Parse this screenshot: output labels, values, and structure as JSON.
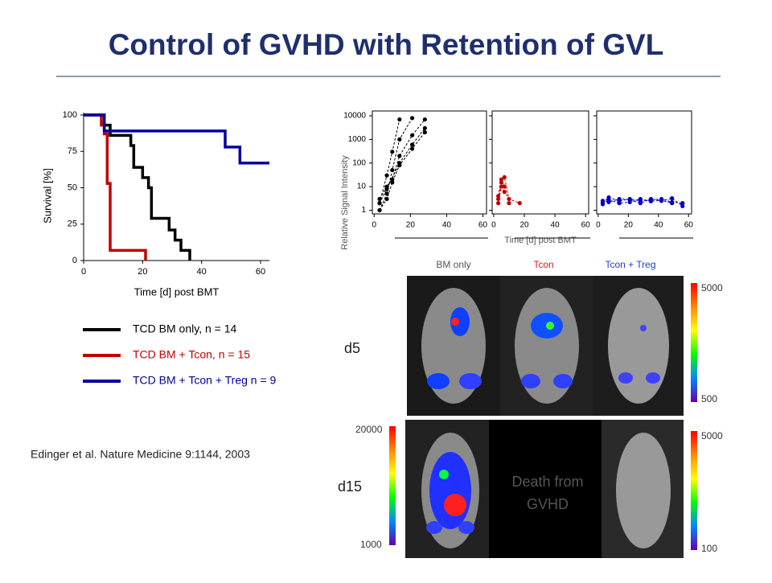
{
  "title": "Control of GVHD with Retention of GVL",
  "citation": "Edinger et al. Nature Medicine 9:1144, 2003",
  "chart_data": [
    {
      "type": "step",
      "xlabel": "Time [d] post BMT",
      "ylabel": "Survival [%]",
      "xlim": [
        0,
        63
      ],
      "xticks": [
        0,
        20,
        40,
        60
      ],
      "ylim": [
        0,
        100
      ],
      "yticks": [
        0,
        25,
        50,
        75,
        100
      ],
      "series": [
        {
          "name": "TCD BM only, n = 14",
          "color": "#000000",
          "x": [
            0,
            7,
            9,
            16,
            17,
            20,
            22,
            23,
            29,
            31,
            33,
            36
          ],
          "values": [
            100,
            93,
            86,
            79,
            64,
            57,
            50,
            29,
            21,
            14,
            7,
            0
          ]
        },
        {
          "name": "TCD BM + Tcon, n = 15",
          "color": "#c00000",
          "x": [
            0,
            6,
            7,
            8,
            9,
            21
          ],
          "values": [
            100,
            93,
            87,
            53,
            7,
            0
          ]
        },
        {
          "name": "TCD BM + Tcon + Treg n = 9",
          "color": "#0000a0",
          "x": [
            0,
            7,
            48,
            53,
            63
          ],
          "values": [
            100,
            89,
            78,
            67,
            67
          ]
        }
      ]
    },
    {
      "type": "line",
      "log": true,
      "ylabel": "Relative Signal Intensity",
      "xlim": [
        -1,
        62
      ],
      "xticks": [
        0,
        20,
        40,
        60
      ],
      "ylim": [
        0.7,
        16000
      ],
      "yticks": [
        1,
        10,
        100,
        1000,
        10000
      ],
      "series": [
        {
          "color": "#000000",
          "x": [
            3,
            7,
            10,
            14
          ],
          "values": [
            2,
            30,
            300,
            7000
          ]
        },
        {
          "color": "#000000",
          "x": [
            3,
            7,
            10,
            14,
            21
          ],
          "values": [
            1,
            5,
            50,
            1000,
            8000
          ]
        },
        {
          "color": "#000000",
          "x": [
            3,
            7,
            10,
            14,
            21,
            28
          ],
          "values": [
            3,
            10,
            20,
            200,
            1500,
            7000
          ]
        },
        {
          "color": "#000000",
          "x": [
            3,
            7,
            14,
            21,
            28
          ],
          "values": [
            2,
            8,
            100,
            600,
            3000
          ]
        },
        {
          "color": "#000000",
          "x": [
            3,
            7,
            10,
            14,
            21,
            28
          ],
          "values": [
            1,
            3,
            15,
            80,
            400,
            2000
          ]
        }
      ]
    },
    {
      "type": "line",
      "log": true,
      "xlabel": "Time [d] post BMT",
      "xlim": [
        -1,
        62
      ],
      "xticks": [
        0,
        20,
        40,
        60
      ],
      "ylim": [
        0.7,
        16000
      ],
      "yticks": [
        1,
        10,
        100,
        1000,
        10000
      ],
      "series": [
        {
          "color": "#c00000",
          "x": [
            3,
            5,
            7,
            10,
            17
          ],
          "values": [
            3,
            15,
            25,
            3,
            2
          ]
        },
        {
          "color": "#c00000",
          "x": [
            3,
            5,
            7
          ],
          "values": [
            2,
            10,
            6
          ]
        },
        {
          "color": "#c00000",
          "x": [
            3,
            5,
            7,
            10
          ],
          "values": [
            4,
            20,
            10,
            2
          ]
        }
      ]
    },
    {
      "type": "line",
      "log": true,
      "xlim": [
        -1,
        62
      ],
      "xticks": [
        0,
        20,
        40,
        60
      ],
      "ylim": [
        0.7,
        16000
      ],
      "yticks": [
        1,
        10,
        100,
        1000,
        10000
      ],
      "series": [
        {
          "color": "#0000c0",
          "x": [
            3,
            7,
            14,
            21,
            28,
            35,
            42,
            49,
            56
          ],
          "values": [
            2,
            3.5,
            2.5,
            3,
            2.5,
            2.8,
            3,
            2.2,
            2
          ]
        },
        {
          "color": "#0000c0",
          "x": [
            3,
            7,
            14,
            21,
            28,
            35,
            42,
            49,
            56
          ],
          "values": [
            2.5,
            2.2,
            3,
            2.8,
            2,
            3,
            2.5,
            3.2,
            1.5
          ]
        },
        {
          "color": "#0000c0",
          "x": [
            3,
            7,
            14,
            21,
            28,
            35,
            42,
            49
          ],
          "values": [
            1.8,
            2.8,
            2,
            2.2,
            3,
            2.4,
            2.6,
            2
          ]
        }
      ]
    }
  ],
  "images": {
    "columns": [
      "BM only",
      "Tcon",
      "Tcon + Treg"
    ],
    "rows": [
      "d5",
      "d15"
    ],
    "death_label": "Death from GVHD",
    "d5_scale": [
      5000,
      500
    ],
    "d15_left_scale": [
      20000,
      1000
    ],
    "d15_right_scale": [
      5000,
      100
    ]
  }
}
